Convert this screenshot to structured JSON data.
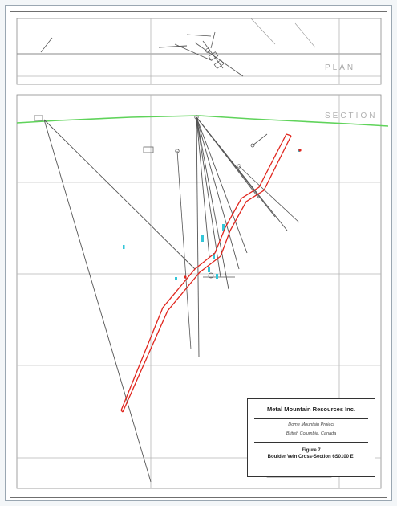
{
  "panels": {
    "plan_label": "PLAN",
    "section_label": "SECTION"
  },
  "title_block": {
    "company": "Metal Mountain Resources Inc.",
    "project": "Dome Mountain Project",
    "location": "British Columbia, Canada",
    "figure_number": "Figure 7",
    "figure_title": "Boulder Vein Cross-Section 6S0100 E."
  },
  "colors": {
    "vein": "#e0261e",
    "topography": "#5fd35a",
    "drillhole": "#555555",
    "grid": "#b5b5b5",
    "intercept": "#33c6d8"
  }
}
